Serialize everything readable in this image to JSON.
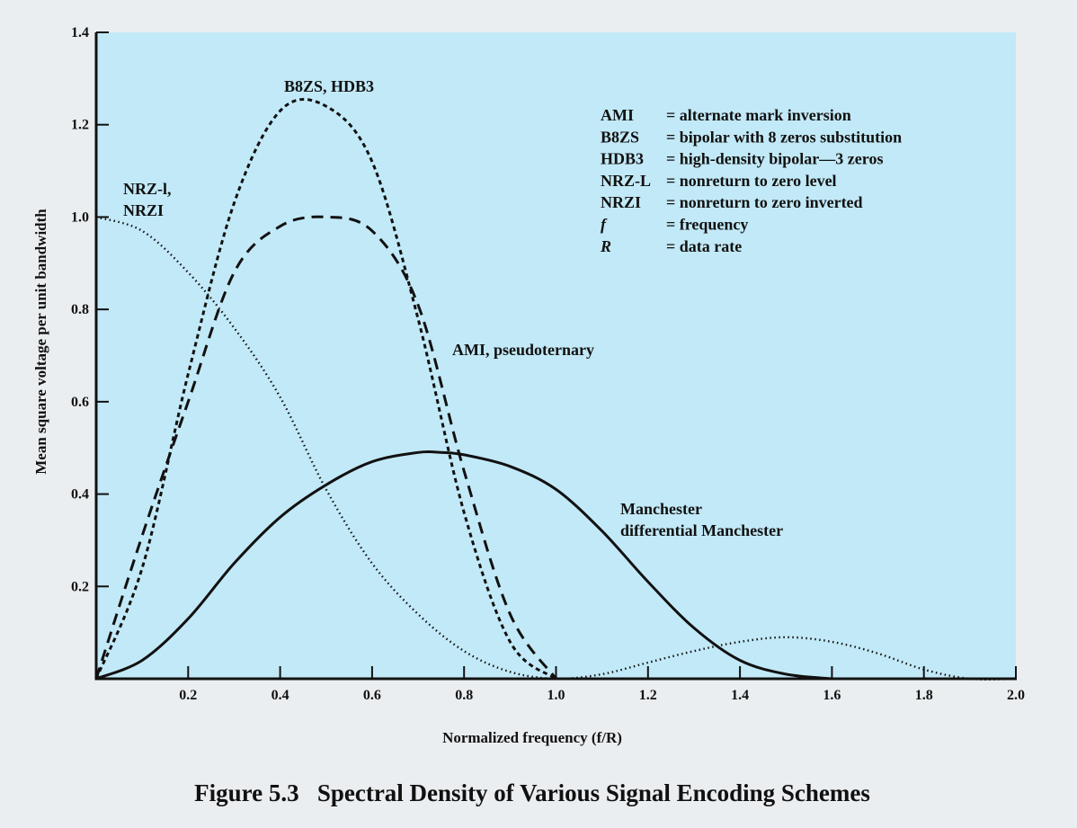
{
  "colors": {
    "plot_background": "#c2e9f7",
    "page_background": "#ebeef0",
    "ink": "#111111"
  },
  "caption": "Figure 5.3   Spectral Density of Various Signal Encoding Schemes",
  "chart_data": {
    "type": "line",
    "title": "",
    "xlabel": "Normalized frequency (f/R)",
    "ylabel": "Mean square voltage per unit bandwidth",
    "xlim": [
      0,
      2.0
    ],
    "ylim": [
      0,
      1.4
    ],
    "xticks": [
      "0.2",
      "0.4",
      "0.6",
      "0.8",
      "1.0",
      "1.2",
      "1.4",
      "1.6",
      "1.8",
      "2.0"
    ],
    "yticks": [
      "0.2",
      "0.4",
      "0.6",
      "0.8",
      "1.0",
      "1.2",
      "1.4"
    ],
    "grid": false,
    "series": [
      {
        "name": "NRZ-l, NRZI",
        "style": "dotted",
        "x": [
          0,
          0.1,
          0.2,
          0.3,
          0.4,
          0.5,
          0.6,
          0.7,
          0.8,
          0.9,
          1.0,
          1.1,
          1.2,
          1.3,
          1.4,
          1.5,
          1.6,
          1.7,
          1.8,
          1.9,
          2.0
        ],
        "y": [
          1.0,
          0.97,
          0.88,
          0.76,
          0.61,
          0.41,
          0.25,
          0.14,
          0.06,
          0.015,
          0.0,
          0.01,
          0.035,
          0.06,
          0.08,
          0.09,
          0.08,
          0.055,
          0.02,
          0.0,
          0.0
        ]
      },
      {
        "name": "B8ZS, HDB3",
        "style": "dotted-dense",
        "x": [
          0,
          0.1,
          0.2,
          0.3,
          0.4,
          0.5,
          0.6,
          0.7,
          0.8,
          0.9,
          1.0
        ],
        "y": [
          0.0,
          0.24,
          0.66,
          1.03,
          1.23,
          1.24,
          1.12,
          0.78,
          0.36,
          0.08,
          0.0
        ]
      },
      {
        "name": "AMI, pseudoternary",
        "style": "dashed",
        "x": [
          0,
          0.1,
          0.2,
          0.3,
          0.4,
          0.5,
          0.6,
          0.7,
          0.8,
          0.9,
          1.0
        ],
        "y": [
          0.0,
          0.31,
          0.6,
          0.88,
          0.98,
          1.0,
          0.97,
          0.81,
          0.45,
          0.14,
          0.0
        ]
      },
      {
        "name": "Manchester differential Manchester",
        "style": "solid",
        "x": [
          0,
          0.1,
          0.2,
          0.3,
          0.4,
          0.5,
          0.6,
          0.7,
          0.75,
          0.8,
          0.9,
          1.0,
          1.1,
          1.2,
          1.3,
          1.4,
          1.5,
          1.6
        ],
        "y": [
          0.0,
          0.04,
          0.13,
          0.25,
          0.35,
          0.42,
          0.47,
          0.49,
          0.49,
          0.485,
          0.46,
          0.41,
          0.32,
          0.21,
          0.11,
          0.04,
          0.01,
          0.0
        ]
      }
    ],
    "annotations": {
      "nrz_line1": "NRZ-l,",
      "nrz_line2": "NRZI",
      "b8zs": "B8ZS, HDB3",
      "ami": "AMI, pseudoternary",
      "manchester_line1": "Manchester",
      "manchester_line2": "differential Manchester"
    },
    "legend": {
      "placement": "top-right",
      "entries": [
        {
          "abbr": "AMI",
          "desc": "= alternate mark inversion"
        },
        {
          "abbr": "B8ZS",
          "desc": "= bipolar with 8 zeros substitution"
        },
        {
          "abbr": "HDB3",
          "desc": "= high-density bipolar—3 zeros"
        },
        {
          "abbr": "NRZ-L",
          "desc": "= nonreturn to zero level"
        },
        {
          "abbr": "NRZI",
          "desc": "= nonreturn to zero inverted"
        },
        {
          "abbr": "f",
          "desc": "= frequency"
        },
        {
          "abbr": "R",
          "desc": "= data rate"
        }
      ]
    }
  }
}
